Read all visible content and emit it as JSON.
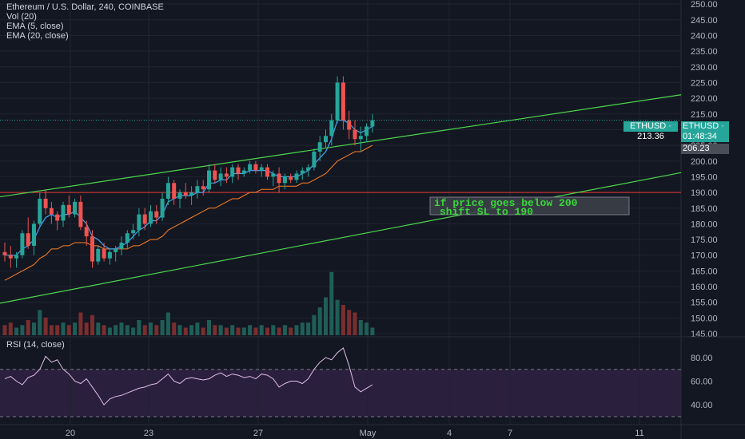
{
  "header": {
    "symbol_line": "Ethereum / U.S. Dollar, 240, COINBASE",
    "indicators": [
      "Vol (20)",
      "EMA (5, close)",
      "EMA (20, close)"
    ]
  },
  "rsi_panel": {
    "title": "RSI (14, close)",
    "ticks": [
      "80.00",
      "60.00",
      "40.00"
    ],
    "upper_band": 70,
    "lower_band": 30,
    "ylim": [
      30,
      88
    ]
  },
  "price_axis": {
    "ticks": [
      "250.00",
      "245.00",
      "240.00",
      "235.00",
      "230.00",
      "225.00",
      "220.00",
      "215.00",
      "210.00",
      "205.00",
      "200.00",
      "195.00",
      "190.00",
      "185.00",
      "180.00",
      "175.00",
      "170.00",
      "165.00",
      "160.00",
      "155.00",
      "150.00",
      "145.00"
    ],
    "ylim": [
      144,
      251.3
    ]
  },
  "time_axis": {
    "ticks": [
      "20",
      "23",
      "27",
      "May",
      "4",
      "7",
      "11"
    ]
  },
  "price_labels": {
    "symbol_price": "ETHUSD · 213.36",
    "countdown": "01:48:34",
    "ema_value": "206.23"
  },
  "annotation": {
    "line1": "if price goes below  200",
    "line2": "shift SL to 190"
  },
  "colors": {
    "background": "#131722",
    "up": "#26a69a",
    "down": "#ef5350",
    "ema_fast": "#42a5f5",
    "ema_slow": "#ff7f24",
    "trendline": "#4cd84c",
    "support_line": "#e53935",
    "rsi_line": "#e1bee7",
    "rsi_band": "#2a1f3d",
    "annotation_text": "#38d838"
  },
  "chart_data": {
    "type": "candlestick",
    "ohlc": [
      [
        171,
        174,
        168,
        170
      ],
      [
        170,
        173,
        166,
        169
      ],
      [
        169,
        171,
        166,
        170
      ],
      [
        170,
        178,
        169,
        177
      ],
      [
        177,
        182,
        172,
        173
      ],
      [
        173,
        181,
        170,
        180
      ],
      [
        180,
        190,
        179,
        188
      ],
      [
        188,
        191,
        183,
        185
      ],
      [
        185,
        187,
        180,
        183
      ],
      [
        183,
        184,
        178,
        181
      ],
      [
        181,
        187,
        179,
        186
      ],
      [
        186,
        189,
        182,
        183
      ],
      [
        183,
        188,
        182,
        187
      ],
      [
        187,
        189,
        178,
        179
      ],
      [
        179,
        181,
        173,
        176
      ],
      [
        176,
        178,
        166,
        168
      ],
      [
        168,
        173,
        167,
        172
      ],
      [
        172,
        174,
        168,
        169
      ],
      [
        169,
        172,
        167,
        171
      ],
      [
        171,
        173,
        168,
        172
      ],
      [
        172,
        176,
        170,
        174
      ],
      [
        174,
        178,
        172,
        177
      ],
      [
        177,
        180,
        175,
        178
      ],
      [
        178,
        185,
        176,
        183
      ],
      [
        183,
        185,
        178,
        180
      ],
      [
        180,
        186,
        179,
        184
      ],
      [
        184,
        186,
        180,
        182
      ],
      [
        182,
        190,
        181,
        188
      ],
      [
        188,
        195,
        186,
        193
      ],
      [
        193,
        194,
        186,
        188
      ],
      [
        188,
        191,
        185,
        190
      ],
      [
        190,
        193,
        188,
        189
      ],
      [
        189,
        192,
        186,
        190
      ],
      [
        190,
        194,
        188,
        192
      ],
      [
        192,
        194,
        189,
        191
      ],
      [
        191,
        199,
        190,
        197
      ],
      [
        197,
        199,
        193,
        194
      ],
      [
        194,
        198,
        192,
        196
      ],
      [
        196,
        198,
        193,
        195
      ],
      [
        195,
        199,
        193,
        198
      ],
      [
        198,
        199,
        194,
        196
      ],
      [
        196,
        198,
        195,
        197
      ],
      [
        197,
        200,
        196,
        199
      ],
      [
        199,
        200,
        196,
        197
      ],
      [
        197,
        199,
        195,
        198
      ],
      [
        198,
        199,
        194,
        195
      ],
      [
        195,
        197,
        192,
        196
      ],
      [
        196,
        198,
        190,
        193
      ],
      [
        193,
        196,
        191,
        195
      ],
      [
        195,
        196,
        193,
        194
      ],
      [
        194,
        197,
        193,
        196
      ],
      [
        196,
        198,
        194,
        197
      ],
      [
        197,
        199,
        195,
        198
      ],
      [
        198,
        204,
        197,
        203
      ],
      [
        203,
        208,
        200,
        206
      ],
      [
        206,
        210,
        204,
        208
      ],
      [
        208,
        215,
        205,
        213
      ],
      [
        213,
        227,
        212,
        225
      ],
      [
        225,
        227,
        210,
        213
      ],
      [
        213,
        216,
        207,
        210
      ],
      [
        210,
        213,
        205,
        207
      ],
      [
        207,
        211,
        203,
        208
      ],
      [
        208,
        212,
        206,
        211
      ],
      [
        211,
        215,
        209,
        213
      ]
    ],
    "volume_lines": [
      [
        29,
        1,
        1,
        0,
        1,
        0,
        1,
        1,
        0,
        1,
        0,
        0,
        0,
        1,
        1,
        0,
        1,
        1,
        0,
        0,
        1,
        0,
        0,
        1,
        0,
        0,
        1,
        1,
        1,
        0,
        1,
        0,
        1,
        0,
        0,
        1,
        1,
        0,
        1,
        1,
        0,
        1,
        0,
        0,
        1,
        0,
        1,
        1,
        0,
        1,
        0,
        0,
        1,
        1,
        1,
        1,
        1,
        1,
        0,
        0,
        1,
        0,
        0,
        1
      ]
    ],
    "volume": [
      4,
      5,
      3,
      4,
      6,
      5,
      10,
      7,
      4,
      4,
      5,
      4,
      5,
      9,
      5,
      8,
      5,
      4,
      3,
      4,
      5,
      4,
      3,
      6,
      4,
      5,
      4,
      6,
      9,
      5,
      4,
      3,
      4,
      5,
      3,
      6,
      4,
      4,
      3,
      4,
      3,
      3,
      4,
      3,
      4,
      3,
      4,
      3,
      4,
      3,
      4,
      5,
      5,
      8,
      11,
      15,
      25,
      14,
      12,
      10,
      9,
      6,
      5,
      3
    ],
    "rsi": [
      62,
      64,
      60,
      57,
      63,
      65,
      70,
      81,
      76,
      78,
      70,
      66,
      60,
      58,
      62,
      55,
      48,
      40,
      45,
      47,
      48,
      50,
      52,
      54,
      55,
      57,
      58,
      62,
      66,
      60,
      58,
      62,
      63,
      62,
      61,
      62,
      65,
      67,
      64,
      66,
      65,
      63,
      64,
      62,
      66,
      65,
      62,
      55,
      58,
      60,
      60,
      58,
      62,
      70,
      76,
      80,
      78,
      84,
      88,
      73,
      55,
      51,
      54,
      57
    ],
    "ema_fast": [
      170,
      170,
      170,
      172,
      173,
      175,
      179,
      182,
      183,
      182,
      183,
      183,
      184,
      182,
      180,
      176,
      175,
      173,
      172,
      172,
      173,
      174,
      176,
      178,
      179,
      181,
      181,
      183,
      187,
      188,
      189,
      189,
      189,
      190,
      190,
      193,
      193,
      194,
      194,
      196,
      196,
      196,
      197,
      197,
      197,
      197,
      196,
      195,
      195,
      195,
      195,
      196,
      197,
      199,
      201,
      203,
      207,
      213,
      213,
      212,
      210,
      209,
      210,
      211
    ],
    "ema_slow": [
      162,
      163,
      164,
      165,
      166,
      167,
      169,
      170,
      172,
      172,
      173,
      173,
      174,
      174,
      174,
      173,
      173,
      172,
      172,
      172,
      172,
      172,
      173,
      173,
      174,
      175,
      175,
      176,
      178,
      179,
      180,
      181,
      182,
      183,
      184,
      185,
      185,
      186,
      187,
      188,
      188,
      189,
      190,
      190,
      191,
      191,
      191,
      192,
      192,
      192,
      192,
      193,
      193,
      194,
      195,
      196,
      198,
      200,
      201,
      202,
      203,
      203,
      204,
      205
    ],
    "trendlines": [
      {
        "from": [
          0,
          188.6
        ],
        "to": [
          74,
          221.1
        ]
      },
      {
        "from": [
          0,
          154.7
        ],
        "to": [
          74,
          196.3
        ]
      }
    ],
    "support_level": 190,
    "xlabel": "",
    "ylabel": ""
  }
}
